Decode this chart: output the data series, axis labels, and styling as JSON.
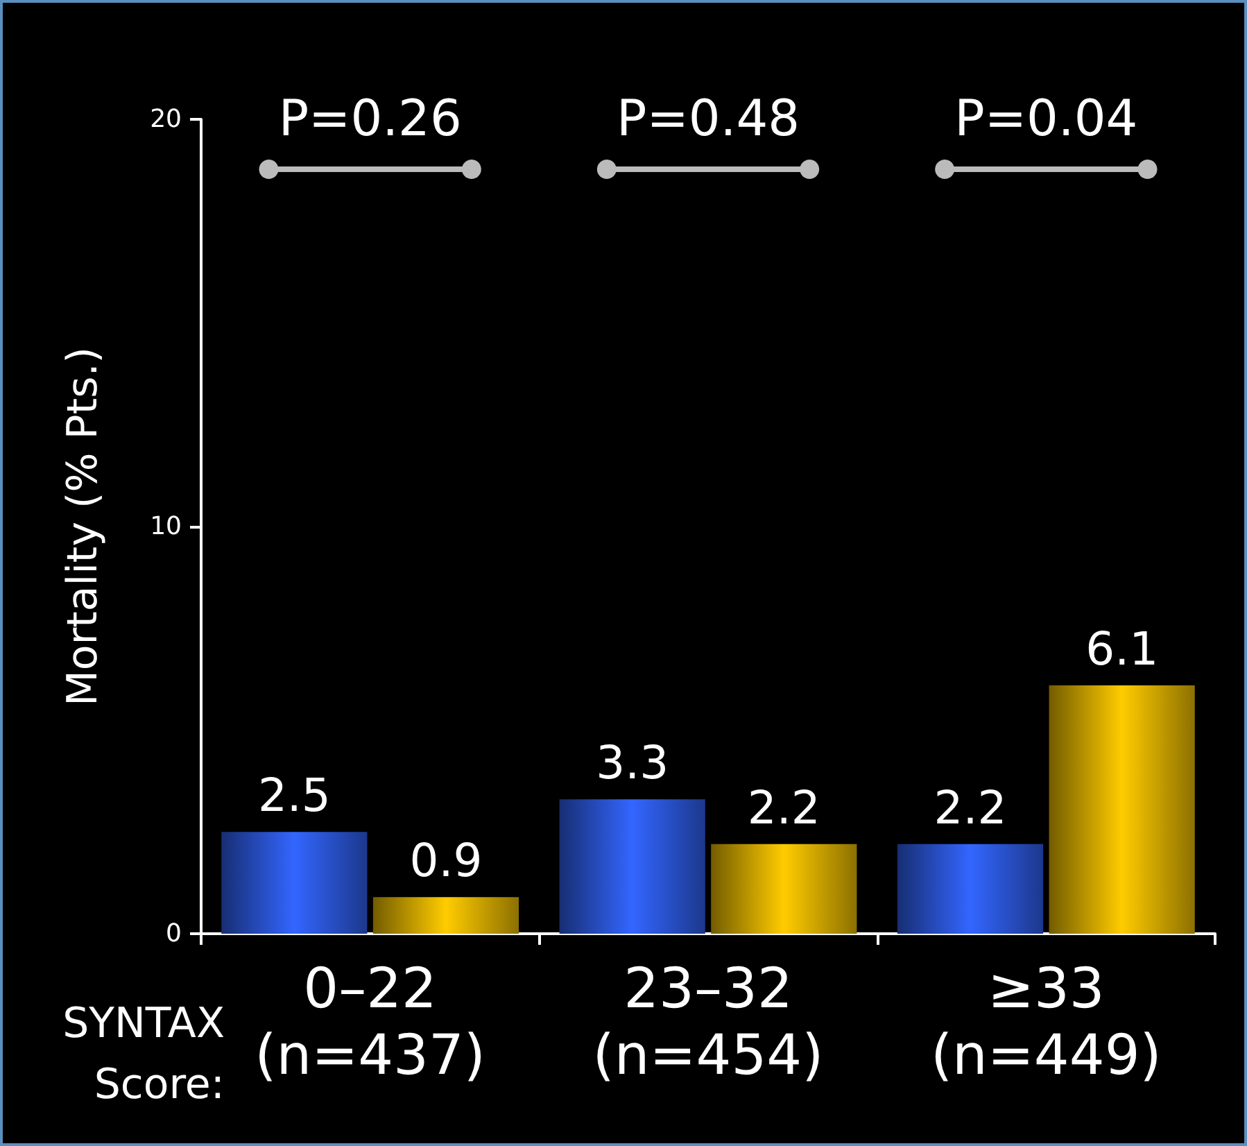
{
  "chart_data": {
    "type": "bar",
    "ylabel": "Mortality (% Pts.)",
    "xlabel": "SYNTAX\nScore:",
    "categories": [
      "0–22\n(n=437)",
      "23–32\n(n=454)",
      "≥33\n(n=449)"
    ],
    "series": [
      {
        "color": "#3366ff",
        "values": [
          2.5,
          3.3,
          2.2
        ]
      },
      {
        "color": "#ffcc00",
        "values": [
          0.9,
          2.2,
          6.1
        ]
      }
    ],
    "annotations": [
      "P=0.26",
      "P=0.48",
      "P=0.04"
    ],
    "ylim": [
      0,
      20
    ],
    "yticks": [
      0,
      10,
      20
    ],
    "grid": false,
    "data_labels": true
  }
}
